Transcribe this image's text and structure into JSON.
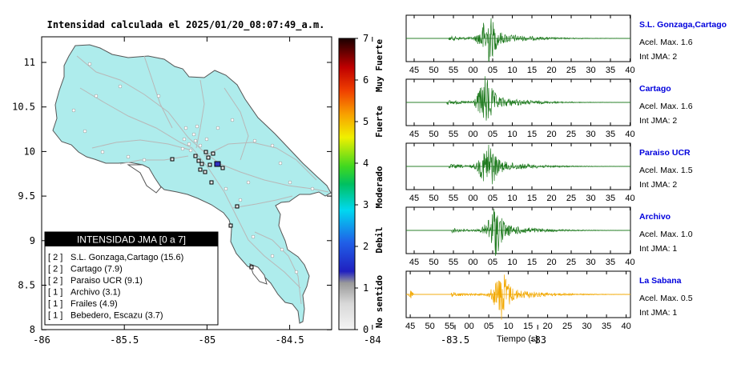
{
  "header": {
    "title": "Intensidad calculada el 2025/01/20_08:07:49_a.m."
  },
  "map": {
    "x_ticks": [
      "-86",
      "-85.5",
      "-85",
      "-84.5",
      "-84",
      "-83.5",
      "-83"
    ],
    "y_ticks": [
      "11",
      "10.5",
      "10",
      "9.5",
      "9",
      "8.5",
      "8"
    ],
    "land_color": "#aeecec",
    "road_color": "#b8b8b8",
    "epicenter_color": "#3030c0"
  },
  "colorbar": {
    "ticks": [
      "7",
      "6",
      "5",
      "4",
      "3",
      "2",
      "1",
      "0"
    ],
    "categories": [
      "Muy Fuerte",
      "Fuerte",
      "Moderado",
      "Debil",
      "No sentido"
    ]
  },
  "legend": {
    "title": "INTENSIDAD JMA [0 a 7]",
    "rows": [
      {
        "level": "[ 2 ]",
        "text": "S.L. Gonzaga,Cartago (15.6)"
      },
      {
        "level": "[ 2 ]",
        "text": "Cartago (7.9)"
      },
      {
        "level": "[ 2 ]",
        "text": "Paraiso UCR (9.1)"
      },
      {
        "level": "[ 1 ]",
        "text": "Archivo (3.1)"
      },
      {
        "level": "[ 1 ]",
        "text": "Frailes (4.9)"
      },
      {
        "level": "[ 1 ]",
        "text": "Bebedero, Escazu (3.7)"
      }
    ]
  },
  "seismograms": {
    "time_ticks": [
      "45",
      "50",
      "55",
      "00",
      "05",
      "10",
      "15",
      "20",
      "25",
      "30",
      "35",
      "40"
    ],
    "xlabel": "Tiempo (s)",
    "stations": [
      {
        "name": "S.L. Gonzaga,Cartago",
        "accel": "Acel. Max. 1.6",
        "jma": "Int JMA: 2",
        "color": "#1e7a1e",
        "onset": 0.19,
        "peak": 0.36,
        "shift": 0.0
      },
      {
        "name": "Cartago",
        "accel": "Acel. Max. 1.6",
        "jma": "Int JMA: 2",
        "color": "#1e7a1e",
        "onset": 0.18,
        "peak": 0.35,
        "shift": 0.0
      },
      {
        "name": "Paraiso UCR",
        "accel": "Acel. Max. 1.5",
        "jma": "Int JMA: 2",
        "color": "#1e7a1e",
        "onset": 0.19,
        "peak": 0.36,
        "shift": 0.0
      },
      {
        "name": "Archivo",
        "accel": "Acel. Max. 1.0",
        "jma": "Int JMA: 1",
        "color": "#1e7a1e",
        "onset": 0.2,
        "peak": 0.39,
        "shift": 0.0
      },
      {
        "name": "La Sabana",
        "accel": "Acel. Max. 0.5",
        "jma": "Int JMA: 1",
        "color": "#f2a800",
        "onset": 0.2,
        "peak": 0.42,
        "shift": 1.0
      }
    ]
  }
}
